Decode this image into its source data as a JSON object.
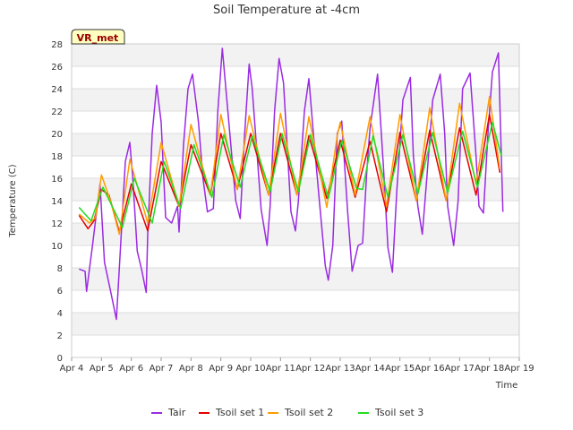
{
  "chart_data": {
    "type": "line",
    "title": "Soil Temperature at -4cm",
    "xlabel": "Time",
    "ylabel": "Temperature (C)",
    "badge": "VR_met",
    "xlim": [
      4,
      19
    ],
    "ylim": [
      0,
      28
    ],
    "x_ticks": [
      {
        "v": 4,
        "label": "Apr 4"
      },
      {
        "v": 5,
        "label": "Apr 5"
      },
      {
        "v": 6,
        "label": "Apr 6"
      },
      {
        "v": 7,
        "label": "Apr 7"
      },
      {
        "v": 8,
        "label": "Apr 8"
      },
      {
        "v": 9,
        "label": "Apr 9"
      },
      {
        "v": 10,
        "label": "Apr 10"
      },
      {
        "v": 11,
        "label": "Apr 11"
      },
      {
        "v": 12,
        "label": "Apr 12"
      },
      {
        "v": 13,
        "label": "Apr 13"
      },
      {
        "v": 14,
        "label": "Apr 14"
      },
      {
        "v": 15,
        "label": "Apr 15"
      },
      {
        "v": 16,
        "label": "Apr 16"
      },
      {
        "v": 17,
        "label": "Apr 17"
      },
      {
        "v": 18,
        "label": "Apr 18"
      },
      {
        "v": 19,
        "label": "Apr 19"
      }
    ],
    "y_ticks": [
      0,
      2,
      4,
      6,
      8,
      10,
      12,
      14,
      16,
      18,
      20,
      22,
      24,
      26,
      28
    ],
    "grid": true,
    "legend_position": "bottom",
    "series": [
      {
        "name": "Tair",
        "color": "#9a2be2",
        "x": [
          4.25,
          4.45,
          4.5,
          4.7,
          4.95,
          5.1,
          5.3,
          5.5,
          5.6,
          5.8,
          5.95,
          6.05,
          6.2,
          6.35,
          6.5,
          6.55,
          6.7,
          6.85,
          7.0,
          7.15,
          7.35,
          7.55,
          7.6,
          7.75,
          7.9,
          8.05,
          8.25,
          8.4,
          8.55,
          8.75,
          8.9,
          9.05,
          9.3,
          9.5,
          9.65,
          9.8,
          9.95,
          10.05,
          10.35,
          10.55,
          10.65,
          10.8,
          10.95,
          11.1,
          11.35,
          11.5,
          11.6,
          11.8,
          11.95,
          12.1,
          12.3,
          12.5,
          12.6,
          12.75,
          12.9,
          13.05,
          13.25,
          13.4,
          13.6,
          13.75,
          13.9,
          14.0,
          14.25,
          14.45,
          14.6,
          14.75,
          14.9,
          15.1,
          15.35,
          15.45,
          15.6,
          15.75,
          15.9,
          16.1,
          16.35,
          16.5,
          16.6,
          16.8,
          16.95,
          17.1,
          17.35,
          17.55,
          17.65,
          17.8,
          17.95,
          18.1,
          18.3,
          18.45
        ],
        "y": [
          7.9,
          7.7,
          5.9,
          10.0,
          15.5,
          8.5,
          6.0,
          3.4,
          8.0,
          17.5,
          19.2,
          16.0,
          9.5,
          7.8,
          5.8,
          11.0,
          20.0,
          24.3,
          21.0,
          12.5,
          12.0,
          13.5,
          11.2,
          19.0,
          24.0,
          25.3,
          21.0,
          16.0,
          13.0,
          13.3,
          22.0,
          27.6,
          20.0,
          14.0,
          12.4,
          20.0,
          26.2,
          24.0,
          13.2,
          10.0,
          13.5,
          22.0,
          26.7,
          24.5,
          13.0,
          11.3,
          14.0,
          22.0,
          24.9,
          20.0,
          14.0,
          8.2,
          6.9,
          10.0,
          20.0,
          21.1,
          13.0,
          7.7,
          10.0,
          10.2,
          17.0,
          20.5,
          25.3,
          17.0,
          9.8,
          7.6,
          15.0,
          23.0,
          25.0,
          18.0,
          13.5,
          11.0,
          16.0,
          23.0,
          25.3,
          20.0,
          13.5,
          10.0,
          14.0,
          24.0,
          25.4,
          18.0,
          13.5,
          12.9,
          20.0,
          25.5,
          27.2,
          13.0
        ]
      },
      {
        "name": "Tsoil set 1",
        "color": "#e60000",
        "x": [
          4.25,
          4.55,
          4.75,
          5.0,
          5.25,
          5.6,
          6.0,
          6.55,
          7.0,
          7.6,
          8.0,
          8.65,
          9.0,
          9.55,
          10.0,
          10.6,
          11.0,
          11.55,
          11.95,
          12.55,
          13.0,
          13.5,
          14.0,
          14.55,
          15.0,
          15.55,
          16.0,
          16.55,
          17.0,
          17.55,
          18.0,
          18.35
        ],
        "y": [
          12.7,
          11.5,
          12.2,
          15.0,
          14.5,
          11.2,
          15.5,
          11.3,
          17.5,
          13.5,
          19.0,
          14.5,
          20.0,
          15.0,
          20.0,
          14.5,
          20.0,
          14.5,
          19.8,
          14.2,
          19.4,
          14.3,
          19.3,
          13.0,
          20.1,
          14.0,
          20.3,
          14.0,
          20.5,
          14.5,
          21.7,
          16.5
        ]
      },
      {
        "name": "Tsoil set 2",
        "color": "#ff9d00",
        "x": [
          4.25,
          4.6,
          4.8,
          5.0,
          5.3,
          5.6,
          5.95,
          6.55,
          7.0,
          7.6,
          8.0,
          8.65,
          9.0,
          9.55,
          9.95,
          10.6,
          11.0,
          11.55,
          11.95,
          12.55,
          12.9,
          13.0,
          13.5,
          14.0,
          14.55,
          15.0,
          15.55,
          16.0,
          16.55,
          17.0,
          17.55,
          18.0,
          18.35
        ],
        "y": [
          12.8,
          12.0,
          12.5,
          16.3,
          14.0,
          11.0,
          17.7,
          12.0,
          19.2,
          13.5,
          20.8,
          14.5,
          21.7,
          15.0,
          21.6,
          14.5,
          21.8,
          14.5,
          21.5,
          13.4,
          19.8,
          21.0,
          14.5,
          21.5,
          13.5,
          21.7,
          14.0,
          22.3,
          14.0,
          22.7,
          15.5,
          23.3,
          16.8
        ]
      },
      {
        "name": "Tsoil set 3",
        "color": "#22dd22",
        "x": [
          4.25,
          4.65,
          5.05,
          5.7,
          6.1,
          6.7,
          7.1,
          7.65,
          8.1,
          8.7,
          9.1,
          9.65,
          10.05,
          10.65,
          11.05,
          11.6,
          12.0,
          12.6,
          13.05,
          13.55,
          13.75,
          14.1,
          14.6,
          15.1,
          15.6,
          16.1,
          16.6,
          17.1,
          17.6,
          18.1,
          18.4
        ],
        "y": [
          13.4,
          12.2,
          15.2,
          11.6,
          16.0,
          12.0,
          17.5,
          13.3,
          19.0,
          14.3,
          19.9,
          15.2,
          19.8,
          14.8,
          20.0,
          14.8,
          19.9,
          14.2,
          19.4,
          15.1,
          15.0,
          19.8,
          14.3,
          19.9,
          14.6,
          20.1,
          14.7,
          20.2,
          15.2,
          21.0,
          18.0
        ]
      }
    ]
  }
}
